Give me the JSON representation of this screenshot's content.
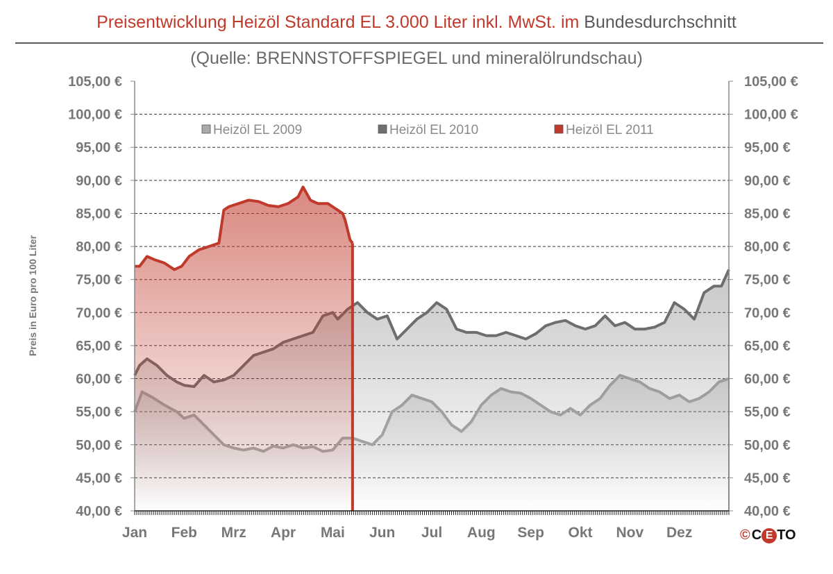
{
  "header": {
    "title_main": "Preisentwicklung Heizöl Standard EL 3.000 Liter inkl. MwSt. im",
    "title_suffix": "Bundesdurchschnitt",
    "subtitle": "(Quelle: BRENNSTOFFSPIEGEL  und mineralölrundschau)"
  },
  "footer": {
    "copyright_symbol": "©",
    "logo_left": "C",
    "logo_mid": "E",
    "logo_right": "TO"
  },
  "chart_data": {
    "type": "area",
    "title": "Preisentwicklung Heizöl Standard EL 3.000 Liter inkl. MwSt. im Bundesdurchschnitt",
    "subtitle": "(Quelle: BRENNSTOFFSPIEGEL  und mineralölrundschau)",
    "xlabel": "",
    "ylabel": "Preis in Euro pro 100 Liter",
    "ylim": [
      40,
      105
    ],
    "y_ticks": [
      "40,00 €",
      "45,00 €",
      "50,00 €",
      "55,00 €",
      "60,00 €",
      "65,00 €",
      "70,00 €",
      "75,00 €",
      "80,00 €",
      "85,00 €",
      "90,00 €",
      "95,00 €",
      "100,00 €",
      "105,00 €"
    ],
    "x_ticks": [
      "Jan",
      "Feb",
      "Mrz",
      "Apr",
      "Mai",
      "Jun",
      "Jul",
      "Aug",
      "Sep",
      "Okt",
      "Nov",
      "Dez"
    ],
    "xlim_months": [
      0,
      12
    ],
    "grid": true,
    "legend_position": "top",
    "series": [
      {
        "name": "Heizöl EL 2009",
        "color": "#a9a9a9",
        "x": [
          0,
          0.15,
          0.35,
          0.6,
          0.85,
          1.0,
          1.2,
          1.4,
          1.6,
          1.8,
          2.0,
          2.2,
          2.4,
          2.6,
          2.8,
          3.0,
          3.2,
          3.4,
          3.6,
          3.8,
          4.0,
          4.2,
          4.4,
          4.6,
          4.8,
          5.0,
          5.2,
          5.4,
          5.6,
          5.8,
          6.0,
          6.2,
          6.4,
          6.6,
          6.8,
          7.0,
          7.2,
          7.4,
          7.6,
          7.8,
          8.0,
          8.2,
          8.4,
          8.6,
          8.8,
          9.0,
          9.2,
          9.4,
          9.6,
          9.8,
          10.0,
          10.2,
          10.4,
          10.6,
          10.8,
          11.0,
          11.2,
          11.4,
          11.6,
          11.8,
          12.0
        ],
        "values": [
          55,
          58,
          57.2,
          56,
          55,
          54,
          54.5,
          53,
          51.5,
          50,
          49.5,
          49.2,
          49.5,
          49,
          49.8,
          49.5,
          50,
          49.5,
          49.7,
          49,
          49.2,
          51,
          51,
          50.5,
          50,
          51.5,
          55,
          56,
          57.5,
          57,
          56.5,
          55,
          53,
          52,
          53.5,
          56,
          57.5,
          58.5,
          58,
          57.8,
          57,
          56,
          55,
          54.5,
          55.5,
          54.5,
          56,
          57,
          59,
          60.5,
          60,
          59.5,
          58.5,
          58,
          57,
          57.5,
          56.5,
          57,
          58,
          59.5,
          60
        ]
      },
      {
        "name": "Heizöl EL 2010",
        "color": "#6e6e6e",
        "x": [
          0,
          0.1,
          0.25,
          0.45,
          0.65,
          0.85,
          1.0,
          1.2,
          1.4,
          1.6,
          1.8,
          2.0,
          2.2,
          2.4,
          2.6,
          2.8,
          3.0,
          3.2,
          3.4,
          3.6,
          3.8,
          4.0,
          4.1,
          4.3,
          4.5,
          4.7,
          4.9,
          5.1,
          5.3,
          5.5,
          5.7,
          5.9,
          6.1,
          6.3,
          6.5,
          6.7,
          6.9,
          7.1,
          7.3,
          7.5,
          7.7,
          7.9,
          8.1,
          8.3,
          8.5,
          8.7,
          8.9,
          9.1,
          9.3,
          9.5,
          9.7,
          9.9,
          10.1,
          10.3,
          10.5,
          10.7,
          10.9,
          11.1,
          11.3,
          11.5,
          11.7,
          11.85,
          12.0
        ],
        "values": [
          60.5,
          62,
          63,
          62,
          60.5,
          59.5,
          59,
          58.8,
          60.5,
          59.5,
          59.8,
          60.5,
          62,
          63.5,
          64,
          64.5,
          65.5,
          66,
          66.5,
          67,
          69.5,
          70,
          69,
          70.5,
          71.5,
          70,
          69,
          69.5,
          66,
          67.5,
          69,
          70,
          71.5,
          70.5,
          67.5,
          67,
          67,
          66.5,
          66.5,
          67,
          66.5,
          66,
          66.8,
          68,
          68.5,
          68.8,
          68,
          67.5,
          68,
          69.5,
          68,
          68.5,
          67.5,
          67.5,
          67.8,
          68.5,
          71.5,
          70.5,
          69,
          73,
          74,
          74,
          76.5
        ]
      },
      {
        "name": "Heizöl EL 2011",
        "color": "#c0392b",
        "x": [
          0,
          0.1,
          0.25,
          0.4,
          0.6,
          0.8,
          0.95,
          1.1,
          1.3,
          1.5,
          1.7,
          1.8,
          1.9,
          2.1,
          2.3,
          2.5,
          2.7,
          2.9,
          3.1,
          3.3,
          3.4,
          3.55,
          3.7,
          3.9,
          4.0,
          4.1,
          4.2,
          4.25,
          4.35,
          4.4
        ],
        "values": [
          77,
          77,
          78.5,
          78,
          77.5,
          76.5,
          77,
          78.5,
          79.5,
          80,
          80.5,
          85.5,
          86,
          86.5,
          87,
          86.8,
          86.2,
          86,
          86.5,
          87.5,
          89,
          87,
          86.5,
          86.5,
          86,
          85.5,
          85,
          84,
          81,
          80.5
        ]
      }
    ]
  }
}
